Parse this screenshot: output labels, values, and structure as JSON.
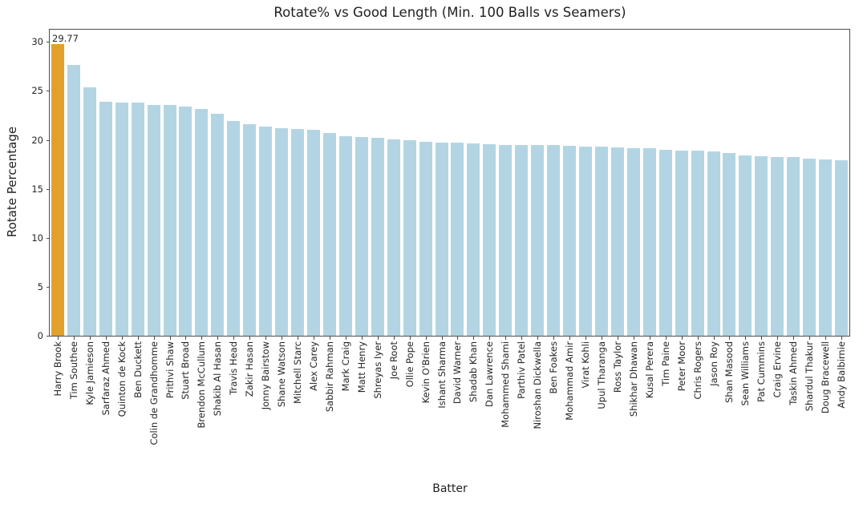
{
  "chart_data": {
    "type": "bar",
    "title": "Rotate% vs Good Length (Min. 100 Balls vs Seamers)",
    "xlabel": "Batter",
    "ylabel": "Rotate Percentage",
    "ylim": [
      0,
      31.33
    ],
    "yticks": [
      0,
      5,
      10,
      15,
      20,
      25,
      30
    ],
    "grid": false,
    "legend": false,
    "bar_color": "#b3d5e3",
    "highlight_color": "#e2a02d",
    "highlighted_bar": "Harry Brook",
    "annotation_label": "29.77",
    "categories": [
      "Harry Brook",
      "Tim Southee",
      "Kyle Jamieson",
      "Sarfaraz Ahmed",
      "Quinton de Kock",
      "Ben Duckett",
      "Colin de Grandhomme",
      "Prithvi Shaw",
      "Stuart Broad",
      "Brendon McCullum",
      "Shakib Al Hasan",
      "Travis Head",
      "Zakir Hasan",
      "Jonny Bairstow",
      "Shane Watson",
      "Mitchell Starc",
      "Alex Carey",
      "Sabbir Rahman",
      "Mark Craig",
      "Matt Henry",
      "Shreyas Iyer",
      "Joe Root",
      "Ollie Pope",
      "Kevin O'Brien",
      "Ishant Sharma",
      "David Warner",
      "Shadab Khan",
      "Dan Lawrence",
      "Mohammed Shami",
      "Parthiv Patel",
      "Niroshan Dickwella",
      "Ben Foakes",
      "Mohammad Amir",
      "Virat Kohli",
      "Upul Tharanga",
      "Ross Taylor",
      "Shikhar Dhawan",
      "Kusal Perera",
      "Tim Paine",
      "Peter Moor",
      "Chris Rogers",
      "Jason Roy",
      "Shan Masood",
      "Sean Williams",
      "Pat Cummins",
      "Craig Ervine",
      "Taskin Ahmed",
      "Shardul Thakur",
      "Doug Bracewell",
      "Andy Balbirnie"
    ],
    "values": [
      29.77,
      27.65,
      25.35,
      23.9,
      23.8,
      23.78,
      23.55,
      23.52,
      23.38,
      23.13,
      22.7,
      21.93,
      21.57,
      21.35,
      21.22,
      21.08,
      21.0,
      20.73,
      20.35,
      20.27,
      20.22,
      20.02,
      20.0,
      19.83,
      19.7,
      19.68,
      19.6,
      19.58,
      19.5,
      19.48,
      19.47,
      19.45,
      19.4,
      19.31,
      19.3,
      19.26,
      19.15,
      19.12,
      18.98,
      18.93,
      18.9,
      18.79,
      18.69,
      18.44,
      18.3,
      18.28,
      18.25,
      18.11,
      17.97,
      17.89
    ]
  }
}
